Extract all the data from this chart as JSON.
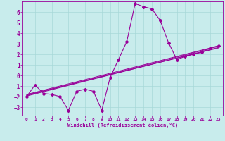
{
  "xlabel": "Windchill (Refroidissement éolien,°C)",
  "bg_color": "#c8ecec",
  "grid_color": "#a8d8d8",
  "line_color": "#990099",
  "xlim": [
    -0.5,
    23.5
  ],
  "ylim": [
    -3.8,
    7.0
  ],
  "xticks": [
    0,
    1,
    2,
    3,
    4,
    5,
    6,
    7,
    8,
    9,
    10,
    11,
    12,
    13,
    14,
    15,
    16,
    17,
    18,
    19,
    20,
    21,
    22,
    23
  ],
  "yticks": [
    -3,
    -2,
    -1,
    0,
    1,
    2,
    3,
    4,
    5,
    6
  ],
  "main_line_x": [
    0,
    1,
    2,
    3,
    4,
    5,
    6,
    7,
    8,
    9,
    10,
    11,
    12,
    13,
    14,
    15,
    16,
    17,
    18,
    19,
    20,
    21,
    22,
    23
  ],
  "main_line_y": [
    -2,
    -0.9,
    -1.7,
    -1.8,
    -2.0,
    -3.3,
    -1.5,
    -1.3,
    -1.5,
    -3.3,
    -0.2,
    1.5,
    3.2,
    6.8,
    6.5,
    6.3,
    5.2,
    3.1,
    1.5,
    1.8,
    2.0,
    2.2,
    2.6,
    2.8
  ],
  "straight_lines": [
    {
      "x": [
        0,
        23
      ],
      "y": [
        -1.8,
        2.8
      ]
    },
    {
      "x": [
        0,
        23
      ],
      "y": [
        -1.85,
        2.6
      ]
    },
    {
      "x": [
        0,
        23
      ],
      "y": [
        -1.9,
        2.75
      ]
    },
    {
      "x": [
        0,
        23
      ],
      "y": [
        -1.95,
        2.65
      ]
    }
  ]
}
